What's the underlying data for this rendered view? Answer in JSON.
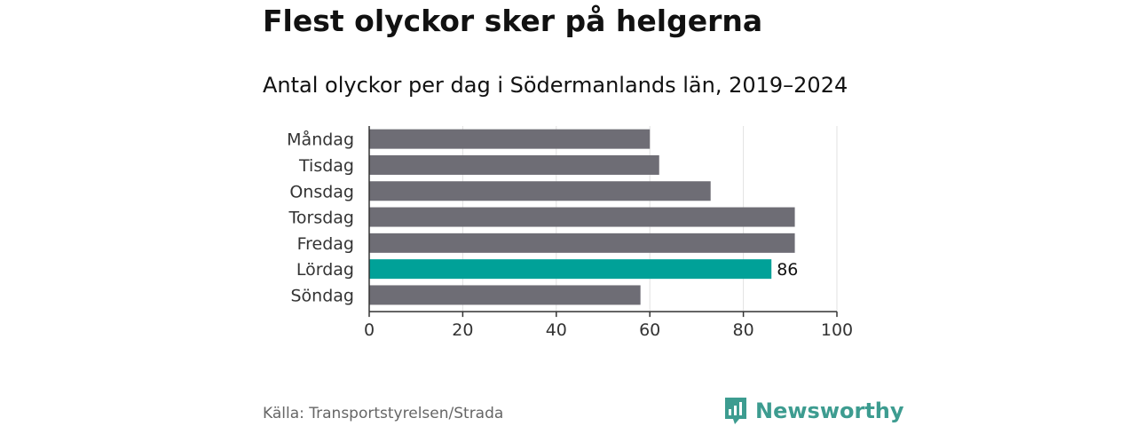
{
  "title": "Flest olyckor sker på helgerna",
  "subtitle": "Antal olyckor per dag i Södermanlands län, 2019–2024",
  "source": "Källa: Transportstyrelsen/Strada",
  "brand": {
    "name": "Newsworthy",
    "icon": "newsworthy-logo-icon",
    "color": "#3d9c90"
  },
  "chart_data": {
    "type": "bar",
    "orientation": "horizontal",
    "categories": [
      "Måndag",
      "Tisdag",
      "Onsdag",
      "Torsdag",
      "Fredag",
      "Lördag",
      "Söndag"
    ],
    "values": [
      60,
      62,
      73,
      91,
      91,
      86,
      58
    ],
    "highlight": {
      "category": "Lördag",
      "label": "86"
    },
    "xlim": [
      0,
      100
    ],
    "xticks": [
      0,
      20,
      40,
      60,
      80,
      100
    ],
    "grid": true,
    "colors": {
      "default": "#6e6d75",
      "highlight": "#00a198"
    }
  }
}
